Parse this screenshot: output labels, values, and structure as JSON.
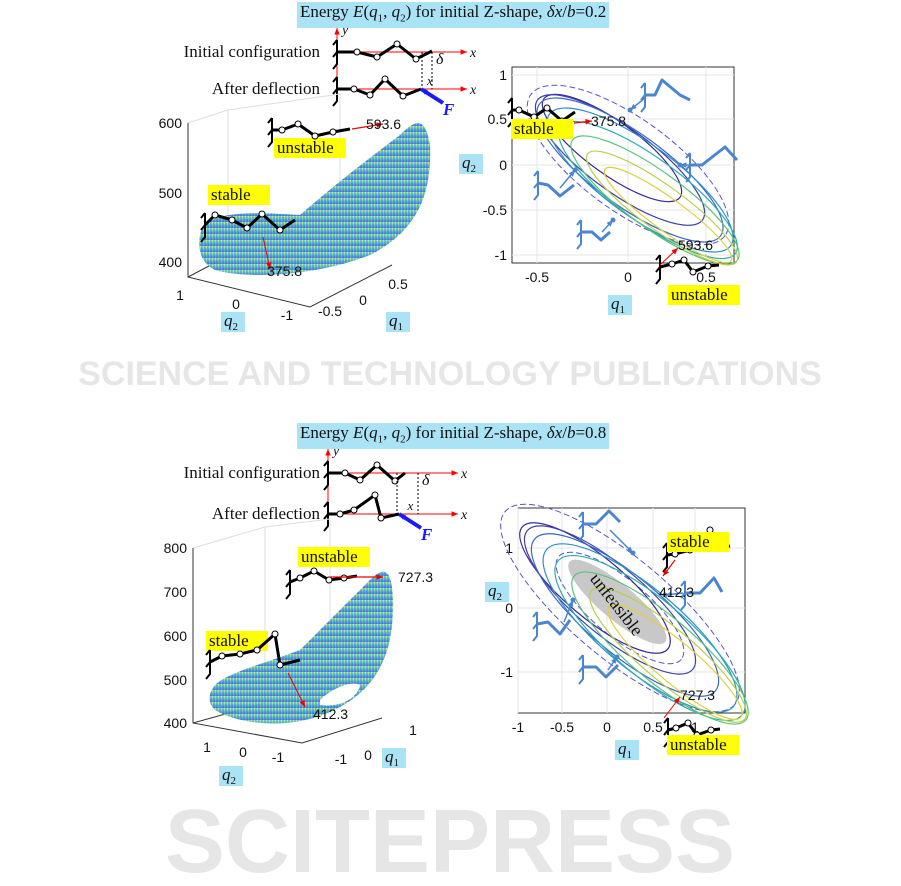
{
  "watermark": {
    "big": "SCITEPRESS",
    "small": "SCIENCE AND TECHNOLOGY PUBLICATIONS"
  },
  "colors": {
    "title_bg": "#a9e3f5",
    "label_bg": "#ffff00",
    "axis_red": "#ff0000",
    "force_blue": "#1a1aff",
    "link_blue": "#4a86d0"
  },
  "figures": [
    {
      "title": {
        "prefix": "Energy ",
        "E": "E",
        "open": "(",
        "q": "q",
        "s1": "1",
        "comma": ", ",
        "s2": "2",
        "close": ")",
        "mid": " for initial Z-shape, ",
        "delta": "δ",
        "x": "x",
        "slash": "/",
        "b": "b",
        "value": "=0.2"
      },
      "inset": {
        "initial": "Initial configuration",
        "after": "After deflection",
        "y": "y",
        "x": "x",
        "delta": "δ",
        "F": "F"
      },
      "surface": {
        "yticks": [
          "600",
          "500",
          "400"
        ],
        "q2ticks": [
          "1",
          "0",
          "-1"
        ],
        "q1ticks": [
          "-0.5",
          "0",
          "0.5"
        ],
        "q2label": "q2",
        "q1label": "q1",
        "stable": "stable",
        "unstable": "unstable",
        "min": "375.8",
        "max": "593.6"
      },
      "contour": {
        "yticks": [
          "1",
          "0.5",
          "0",
          "-0.5",
          "-1"
        ],
        "xticks": [
          "-0.5",
          "0",
          "0.5"
        ],
        "ylabel": "q2",
        "xlabel": "q1",
        "stable": "stable",
        "unstable": "unstable",
        "min": "375.8",
        "max": "593.6"
      }
    },
    {
      "title": {
        "prefix": "Energy ",
        "E": "E",
        "open": "(",
        "q": "q",
        "s1": "1",
        "comma": ", ",
        "s2": "2",
        "close": ")",
        "mid": " for initial Z-shape, ",
        "delta": "δ",
        "x": "x",
        "slash": "/",
        "b": "b",
        "value": "=0.8"
      },
      "inset": {
        "initial": "Initial configuration",
        "after": "After deflection",
        "y": "y",
        "x": "x",
        "delta": "δ",
        "F": "F"
      },
      "surface": {
        "yticks": [
          "800",
          "700",
          "600",
          "500",
          "400"
        ],
        "q2ticks": [
          "1",
          "0",
          "-1"
        ],
        "q1ticks": [
          "-1",
          "0",
          "1"
        ],
        "q2label": "q2",
        "q1label": "q1",
        "stable": "stable",
        "unstable": "unstable",
        "min": "412.3",
        "max": "727.3"
      },
      "contour": {
        "yticks": [
          "1",
          "0",
          "-1"
        ],
        "xticks": [
          "-1",
          "-0.5",
          "0",
          "0.5",
          "1"
        ],
        "ylabel": "q2",
        "xlabel": "q1",
        "stable": "stable",
        "unstable": "unstable",
        "min": "412.3",
        "max": "727.3",
        "unfeasible": "unfeasible"
      }
    }
  ]
}
